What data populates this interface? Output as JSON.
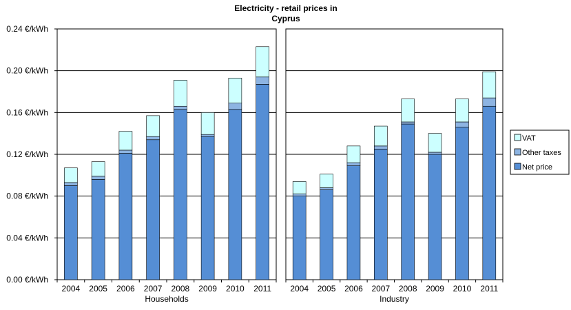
{
  "chart_data": {
    "type": "bar",
    "stacked": true,
    "title": "Electricity - retail prices in",
    "subtitle": "Cyprus",
    "ylim": [
      0,
      0.24
    ],
    "y_ticks": [
      "0.00 €/kWh",
      "0.04 €/kWh",
      "0.08 €/kWh",
      "0.12 €/kWh",
      "0.16 €/kWh",
      "0.20 €/kWh",
      "0.24 €/kWh"
    ],
    "y_tick_values": [
      0,
      0.04,
      0.08,
      0.12,
      0.16,
      0.2,
      0.24
    ],
    "grid": true,
    "legend_position": "right",
    "categories": [
      "2004",
      "2005",
      "2006",
      "2007",
      "2008",
      "2009",
      "2010",
      "2011"
    ],
    "legend": [
      {
        "name": "VAT",
        "color": "#ccffff"
      },
      {
        "name": "Other taxes",
        "color": "#8db4e2"
      },
      {
        "name": "Net price",
        "color": "#558ed5"
      }
    ],
    "panels": [
      {
        "label": "Households",
        "series": [
          {
            "name": "Net price",
            "values": [
              0.09,
              0.096,
              0.121,
              0.134,
              0.163,
              0.137,
              0.163,
              0.187
            ]
          },
          {
            "name": "Other taxes",
            "values": [
              0.003,
              0.003,
              0.003,
              0.003,
              0.003,
              0.002,
              0.006,
              0.007
            ]
          },
          {
            "name": "VAT",
            "values": [
              0.014,
              0.014,
              0.018,
              0.02,
              0.025,
              0.021,
              0.024,
              0.029
            ]
          }
        ]
      },
      {
        "label": "Industry",
        "series": [
          {
            "name": "Net price",
            "values": [
              0.08,
              0.086,
              0.109,
              0.125,
              0.149,
              0.12,
              0.146,
              0.166
            ]
          },
          {
            "name": "Other taxes",
            "values": [
              0.002,
              0.002,
              0.003,
              0.003,
              0.002,
              0.002,
              0.005,
              0.008
            ]
          },
          {
            "name": "VAT",
            "values": [
              0.012,
              0.013,
              0.016,
              0.019,
              0.022,
              0.018,
              0.022,
              0.025
            ]
          }
        ]
      }
    ]
  }
}
